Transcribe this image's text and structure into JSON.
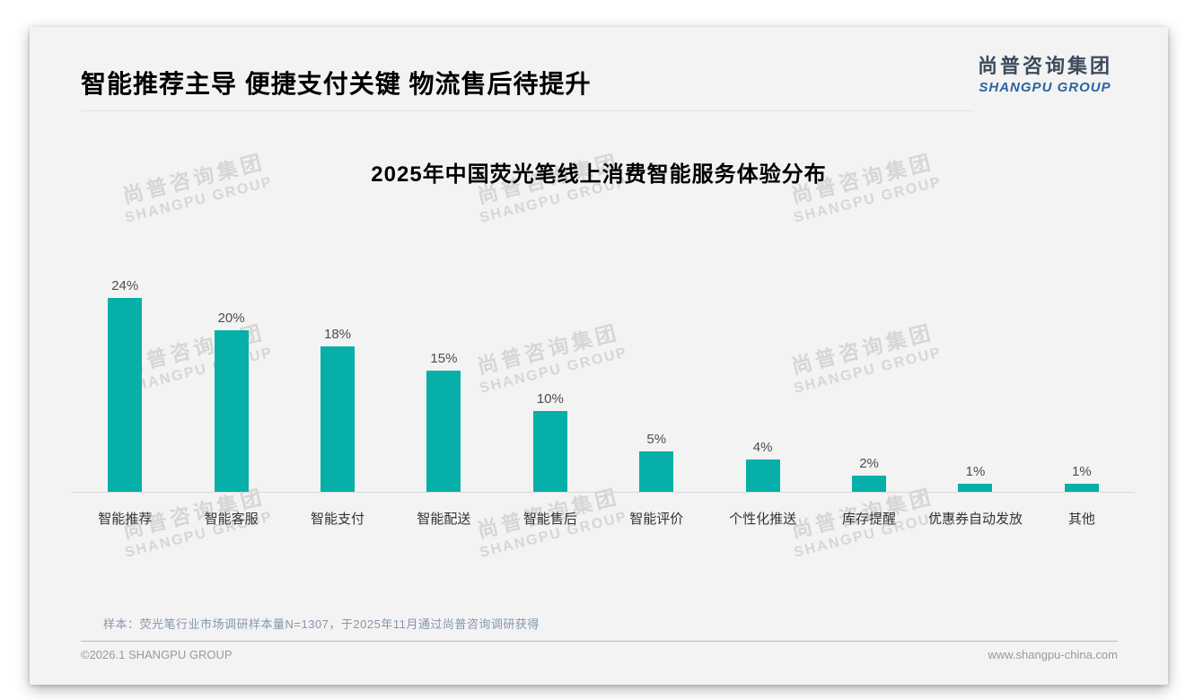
{
  "page": {
    "title": "智能推荐主导 便捷支付关键 物流售后待提升",
    "logo": {
      "cn": "尚普咨询集团",
      "en": "SHANGPU GROUP"
    },
    "watermark": {
      "cn": "尚普咨询集团",
      "en": "SHANGPU GROUP"
    },
    "footer": {
      "sample_note": "样本：荧光笔行业市场调研样本量N=1307，于2025年11月通过尚普咨询调研获得",
      "copyright": "©2026.1 SHANGPU GROUP",
      "website": "www.shangpu-china.com"
    },
    "colors": {
      "bar": "#06afa8",
      "logo_cn": "#3d4b5c",
      "logo_en": "#2b639e",
      "sample_note": "#8696ab"
    }
  },
  "chart_data": {
    "type": "bar",
    "title": "2025年中国荧光笔线上消费智能服务体验分布",
    "categories": [
      "智能推荐",
      "智能客服",
      "智能支付",
      "智能配送",
      "智能售后",
      "智能评价",
      "个性化推送",
      "库存提醒",
      "优惠券自动发放",
      "其他"
    ],
    "values": [
      24,
      20,
      18,
      15,
      10,
      5,
      4,
      2,
      1,
      1
    ],
    "value_labels": [
      "24%",
      "20%",
      "18%",
      "15%",
      "10%",
      "5%",
      "4%",
      "2%",
      "1%",
      "1%"
    ],
    "xlabel": "",
    "ylabel": "",
    "ylim": [
      0,
      24
    ],
    "grid": false,
    "legend": false,
    "bar_color": "#06afa8"
  }
}
